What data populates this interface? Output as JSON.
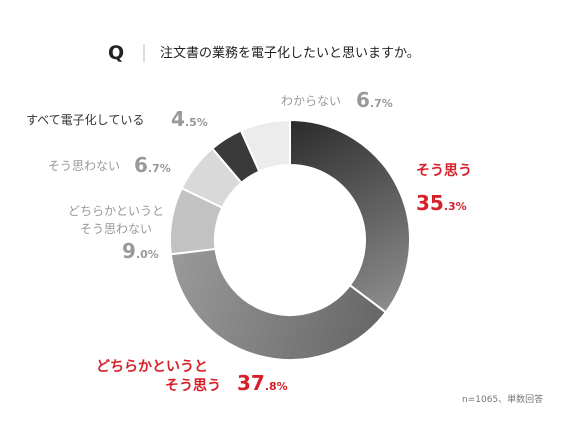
{
  "header": {
    "q_mark": "Q",
    "question": "注文書の業務を電子化したいと思いますか。"
  },
  "note": "n=1065、単数回答",
  "colors": {
    "accent_red": "#d7212a",
    "label_gray": "#999999",
    "label_dark": "#333333"
  },
  "chart_data": {
    "type": "pie",
    "style": "donut",
    "start": "12 o'clock, clockwise",
    "slices": [
      {
        "label": "そう思う",
        "value": 35.3,
        "int": "35",
        "dec": ".3%",
        "color_from": "#2b2b2b",
        "color_to": "#8d8d8d"
      },
      {
        "label": "どちらかというとそう思う",
        "value": 37.8,
        "int": "37",
        "dec": ".8%",
        "color_from": "#666666",
        "color_to": "#9a9a9a"
      },
      {
        "label": "どちらかというとそう思わない",
        "value": 9.0,
        "int": "9",
        "dec": ".0%",
        "color_from": "#c2c2c2",
        "color_to": "#c2c2c2"
      },
      {
        "label": "そう思わない",
        "value": 6.7,
        "int": "6",
        "dec": ".7%",
        "color_from": "#d9d9d9",
        "color_to": "#d9d9d9"
      },
      {
        "label": "すべて電子化している",
        "value": 4.5,
        "int": "4",
        "dec": ".5%",
        "color_from": "#3a3a3a",
        "color_to": "#3a3a3a"
      },
      {
        "label": "わからない",
        "value": 6.7,
        "int": "6",
        "dec": ".7%",
        "color_from": "#ececec",
        "color_to": "#ececec"
      }
    ],
    "labels": {
      "soumou_line1": "そう思う",
      "dochira_line1": "どちらかというと",
      "dochira_line2": "そう思う",
      "dochira_neg_line1": "どちらかというと",
      "dochira_neg_line2": "そう思わない",
      "soumowanai": "そう思わない",
      "subete": "すべて電子化している",
      "wakaranai": "わからない"
    }
  }
}
